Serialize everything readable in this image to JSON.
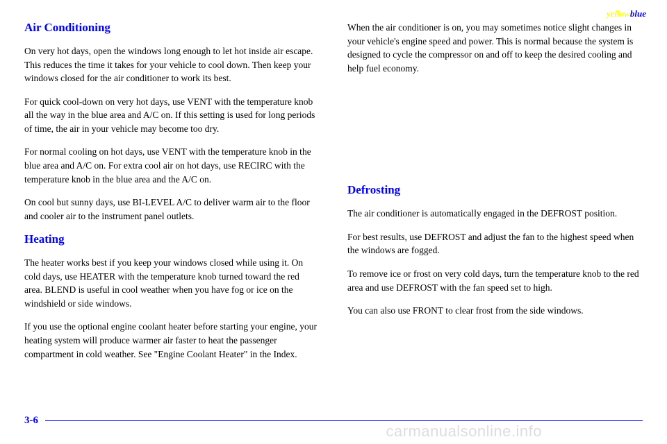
{
  "watermark": {
    "yellow": "yellow",
    "blue": "blue"
  },
  "leftColumn": {
    "heading1": "Air Conditioning",
    "para1": "On very hot days, open the windows long enough to let hot inside air escape. This reduces the time it takes for your vehicle to cool down. Then keep your windows closed for the air conditioner to work its best.",
    "para2": "For quick cool-down on very hot days, use VENT with the temperature knob all the way in the blue area and A/C on. If this setting is used for long periods of time, the air in your vehicle may become too dry.",
    "para3": "For normal cooling on hot days, use VENT with the temperature knob in the blue area and A/C on. For extra cool air on hot days, use RECIRC with the temperature knob in the blue area and the A/C on.",
    "para4": "On cool but sunny days, use BI-LEVEL A/C to deliver warm air to the floor and cooler air to the instrument panel outlets.",
    "heading2": "Heating",
    "para5": "The heater works best if you keep your windows closed while using it. On cold days, use HEATER with the temperature knob turned toward the red area. BLEND is useful in cool weather when you have fog or ice on the windshield or side windows.",
    "para6": "If you use the optional engine coolant heater before starting your engine, your heating system will produce warmer air faster to heat the passenger compartment in cold weather. See \"Engine Coolant Heater\" in the Index."
  },
  "rightColumn": {
    "para1": "When the air conditioner is on, you may sometimes notice slight changes in your vehicle's engine speed and power. This is normal because the system is designed to cycle the compressor on and off to keep the desired cooling and help fuel economy.",
    "heading1": "Defrosting",
    "para2": "The air conditioner is automatically engaged in the DEFROST position.",
    "para3": "For best results, use DEFROST and adjust the fan to the highest speed when the windows are fogged.",
    "para4": "To remove ice or frost on very cold days, turn the temperature knob to the red area and use DEFROST with the fan speed set to high.",
    "para5": "You can also use FRONT to clear frost from the side windows."
  },
  "footer": {
    "pageNumber": "3-6"
  },
  "bottomWatermark": "carmanualsonline.info"
}
